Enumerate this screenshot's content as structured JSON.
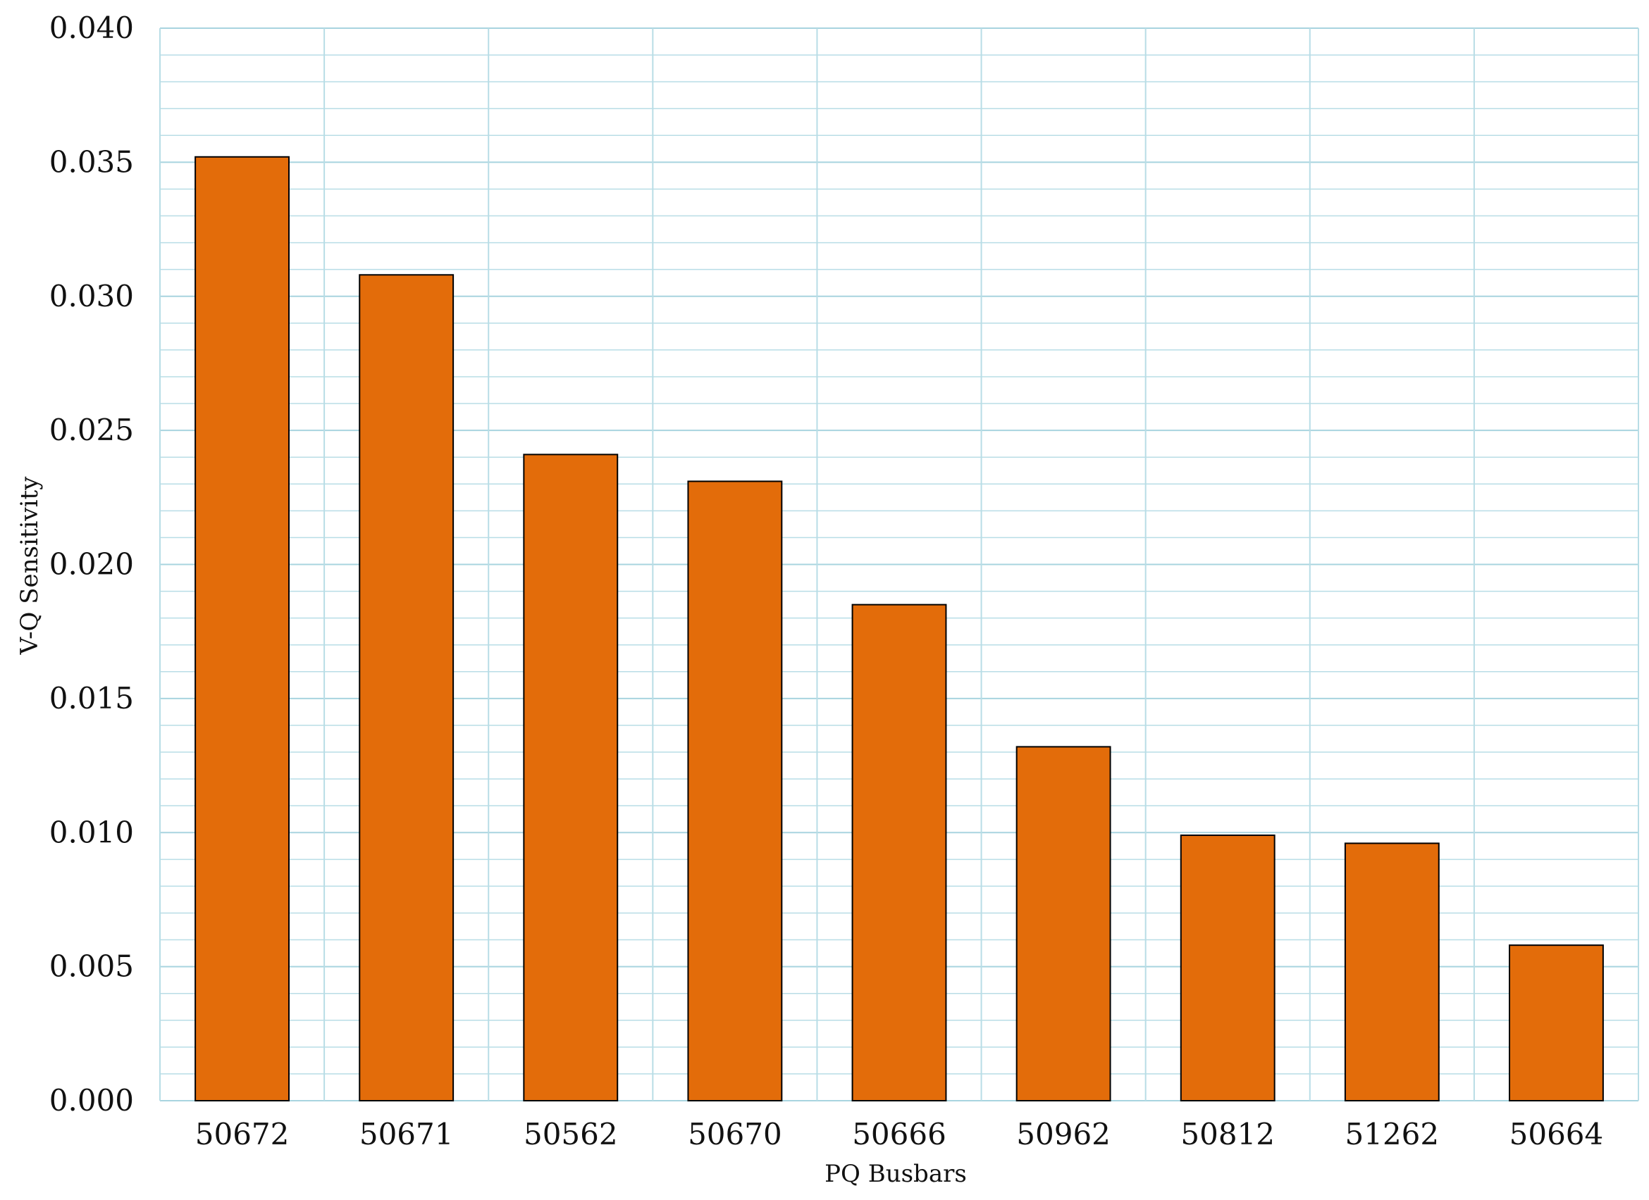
{
  "chart_data": {
    "type": "bar",
    "title": "",
    "xlabel": "PQ Busbars",
    "ylabel": "V-Q Sensitivity",
    "categories": [
      "50672",
      "50671",
      "50562",
      "50670",
      "50666",
      "50962",
      "50812",
      "51262",
      "50664"
    ],
    "values": [
      0.0352,
      0.0308,
      0.0241,
      0.0231,
      0.0185,
      0.0132,
      0.0099,
      0.0096,
      0.0058
    ],
    "ylim": [
      0,
      0.04
    ],
    "yticks": [
      "0.000",
      "0.005",
      "0.010",
      "0.015",
      "0.020",
      "0.025",
      "0.030",
      "0.035",
      "0.040"
    ],
    "grid": true,
    "legend": "none",
    "colors": {
      "bar_fill": "#e36c0a",
      "bar_edge": "#000000",
      "grid": "#b8dde6"
    }
  }
}
